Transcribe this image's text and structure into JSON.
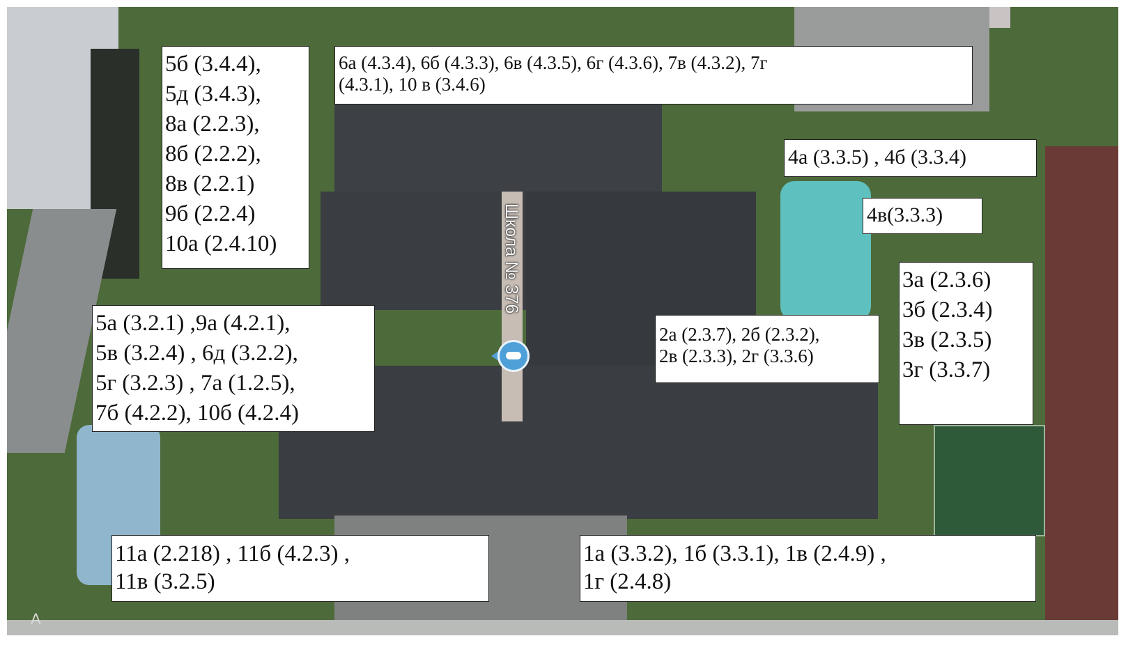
{
  "map": {
    "school_name": "Школа № 376",
    "edge_mark": "A",
    "colors": {
      "grass": "#4d6a3a",
      "roof": "#3a3d42",
      "playground": "#5fc0c0",
      "field": "#2f5a3a",
      "track": "#6a3a36",
      "pin": "#4fa0d8"
    }
  },
  "labels": {
    "box_5b": [
      "5б (3.4.4),",
      "5д (3.4.3),",
      "8а (2.2.3),",
      "8б (2.2.2),",
      "8в (2.2.1)",
      "9б (2.2.4)",
      "10а (2.4.10)"
    ],
    "box_6a": [
      "6а (4.3.4), 6б (4.3.3), 6в (4.3.5), 6г (4.3.6), 7в (4.3.2), 7г",
      "(4.3.1), 10 в (3.4.6)"
    ],
    "box_4a": [
      "4а (3.3.5) , 4б (3.3.4)"
    ],
    "box_4v": [
      "4в(3.3.3)"
    ],
    "box_3a": [
      "3а (2.3.6)",
      "3б (2.3.4)",
      "3в (2.3.5)",
      "3г (3.3.7)"
    ],
    "box_5a": [
      "5а (3.2.1) ,9а (4.2.1),",
      "5в (3.2.4) , 6д (3.2.2),",
      "5г (3.2.3) , 7а (1.2.5),",
      "7б (4.2.2), 10б (4.2.4)"
    ],
    "box_2a": [
      "2а (2.3.7), 2б (2.3.2),",
      "2в (2.3.3), 2г (3.3.6)"
    ],
    "box_11a": [
      "11а (2.218) , 11б (4.2.3) ,",
      "11в (3.2.5)"
    ],
    "box_1a": [
      "1а (3.3.2), 1б (3.3.1), 1в (2.4.9) ,",
      "1г (2.4.8)"
    ]
  }
}
